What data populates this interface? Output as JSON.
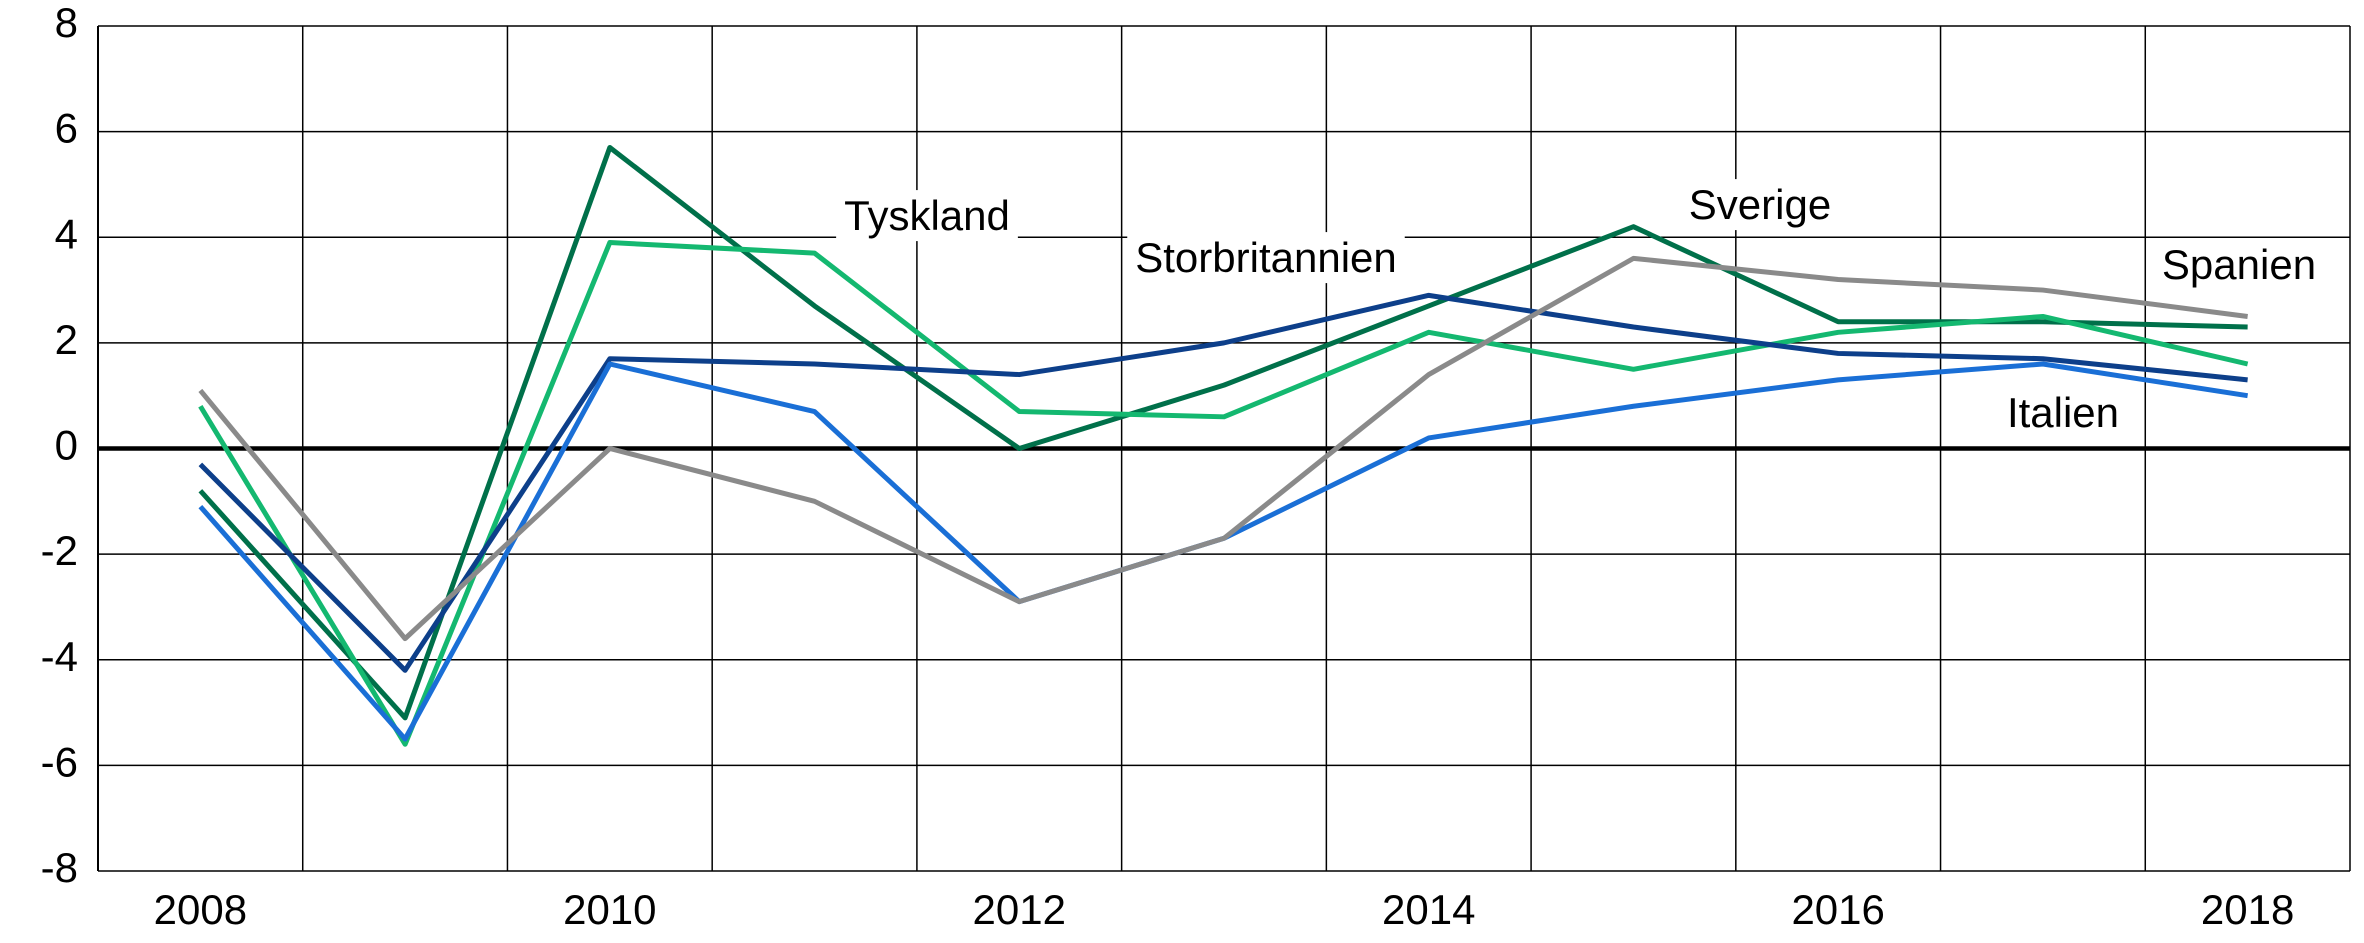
{
  "chart_data": {
    "type": "line",
    "categories": [
      "2008",
      null,
      "2010",
      null,
      "2012",
      null,
      "2014",
      null,
      "2016",
      null,
      "2018"
    ],
    "ylim": [
      -8,
      8
    ],
    "yticks": [
      -8,
      -6,
      -4,
      -2,
      0,
      2,
      4,
      6,
      8
    ],
    "grid": true,
    "series": [
      {
        "name": "Sverige",
        "color": "#00704a",
        "values": [
          -0.8,
          -5.1,
          5.7,
          2.7,
          0.0,
          1.2,
          2.7,
          4.2,
          2.4,
          2.4,
          2.3
        ]
      },
      {
        "name": "Tyskland",
        "color": "#14b870",
        "values": [
          0.8,
          -5.6,
          3.9,
          3.7,
          0.7,
          0.6,
          2.2,
          1.5,
          2.2,
          2.5,
          1.6
        ]
      },
      {
        "name": "Storbritannien",
        "color": "#0d3f8a",
        "values": [
          -0.3,
          -4.2,
          1.7,
          1.6,
          1.4,
          2.0,
          2.9,
          2.3,
          1.8,
          1.7,
          1.3
        ]
      },
      {
        "name": "Italien",
        "color": "#1a6fd6",
        "values": [
          -1.1,
          -5.5,
          1.6,
          0.7,
          -2.9,
          -1.7,
          0.2,
          0.8,
          1.3,
          1.6,
          1.0
        ]
      },
      {
        "name": "Spanien",
        "color": "#8a8a8a",
        "values": [
          1.1,
          -3.6,
          0.0,
          -1.0,
          -2.9,
          -1.7,
          1.4,
          3.6,
          3.2,
          3.0,
          2.5
        ]
      }
    ]
  }
}
